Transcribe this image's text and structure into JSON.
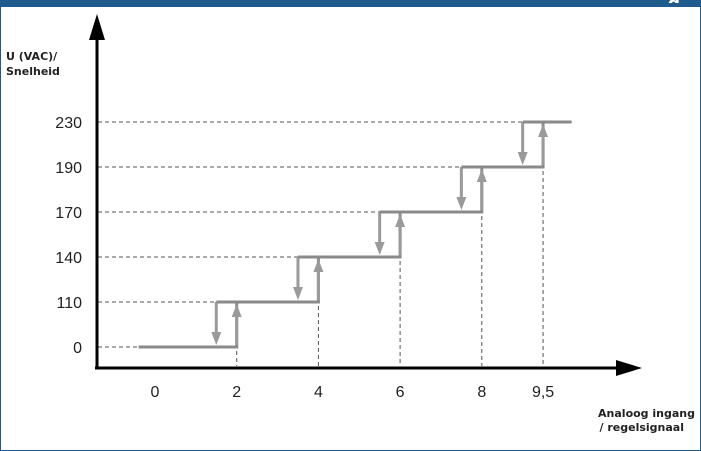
{
  "header": {
    "bar_color": "#1f5b8c",
    "title_fragment": "g"
  },
  "chart_data": {
    "type": "line",
    "y_axis_label_line1": "U (VAC)/",
    "y_axis_label_line2": "Snelheid",
    "x_axis_label_line1": "Analoog ingang",
    "x_axis_label_line2": "/ regelsignaal",
    "y_levels": [
      0,
      110,
      140,
      170,
      190,
      230
    ],
    "y_tick_labels": [
      "0",
      "110",
      "140",
      "170",
      "190",
      "230"
    ],
    "x_ticks": [
      0,
      2,
      4,
      6,
      8,
      9.5
    ],
    "x_tick_labels": [
      "0",
      "2",
      "4",
      "6",
      "8",
      "9,5"
    ],
    "steps": [
      {
        "x_up": 2,
        "x_down": 1.5,
        "from": 0,
        "to": 110
      },
      {
        "x_up": 4,
        "x_down": 3.5,
        "from": 110,
        "to": 140
      },
      {
        "x_up": 6,
        "x_down": 5.5,
        "from": 140,
        "to": 170
      },
      {
        "x_up": 8,
        "x_down": 7.5,
        "from": 170,
        "to": 190
      },
      {
        "x_up": 9.5,
        "x_down": 9.0,
        "from": 190,
        "to": 230
      }
    ],
    "line_start_x": -0.4,
    "line_end_x": 10.2,
    "line_color": "#8a8a8a",
    "arrow_color": "#9a9a9a",
    "grid_color": "#555555",
    "axis_color": "#000000"
  }
}
